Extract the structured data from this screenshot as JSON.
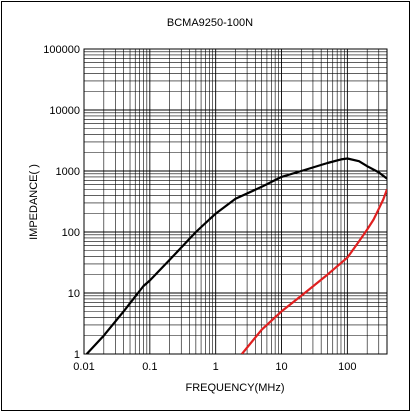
{
  "chart_data": {
    "type": "line",
    "title": "BCMA9250-100N",
    "xlabel": "FREQUENCY(MHz)",
    "ylabel": "IMPEDANCE(  )",
    "x_scale": "log",
    "y_scale": "log",
    "xlim": [
      0.01,
      400
    ],
    "ylim": [
      1,
      100000
    ],
    "grid": true,
    "x_tick_labels": [
      "0.01",
      "0.1",
      "1",
      "10",
      "100"
    ],
    "y_tick_labels": [
      "1",
      "10",
      "100",
      "1000",
      "10000",
      "100000"
    ],
    "series": [
      {
        "color": "#000000",
        "x": [
          0.011,
          0.02,
          0.04,
          0.08,
          0.1,
          0.2,
          0.5,
          1,
          2,
          5,
          10,
          20,
          50,
          80,
          100,
          150,
          200,
          300,
          400
        ],
        "y": [
          1,
          2,
          5,
          13,
          16,
          35,
          100,
          200,
          350,
          550,
          800,
          1000,
          1350,
          1550,
          1600,
          1450,
          1200,
          950,
          750
        ]
      },
      {
        "color": "#e02020",
        "x": [
          2.5,
          5,
          10,
          20,
          50,
          100,
          150,
          200,
          250,
          300,
          350,
          400
        ],
        "y": [
          1,
          2.5,
          5,
          9,
          20,
          38,
          70,
          110,
          160,
          240,
          340,
          500
        ]
      }
    ]
  }
}
